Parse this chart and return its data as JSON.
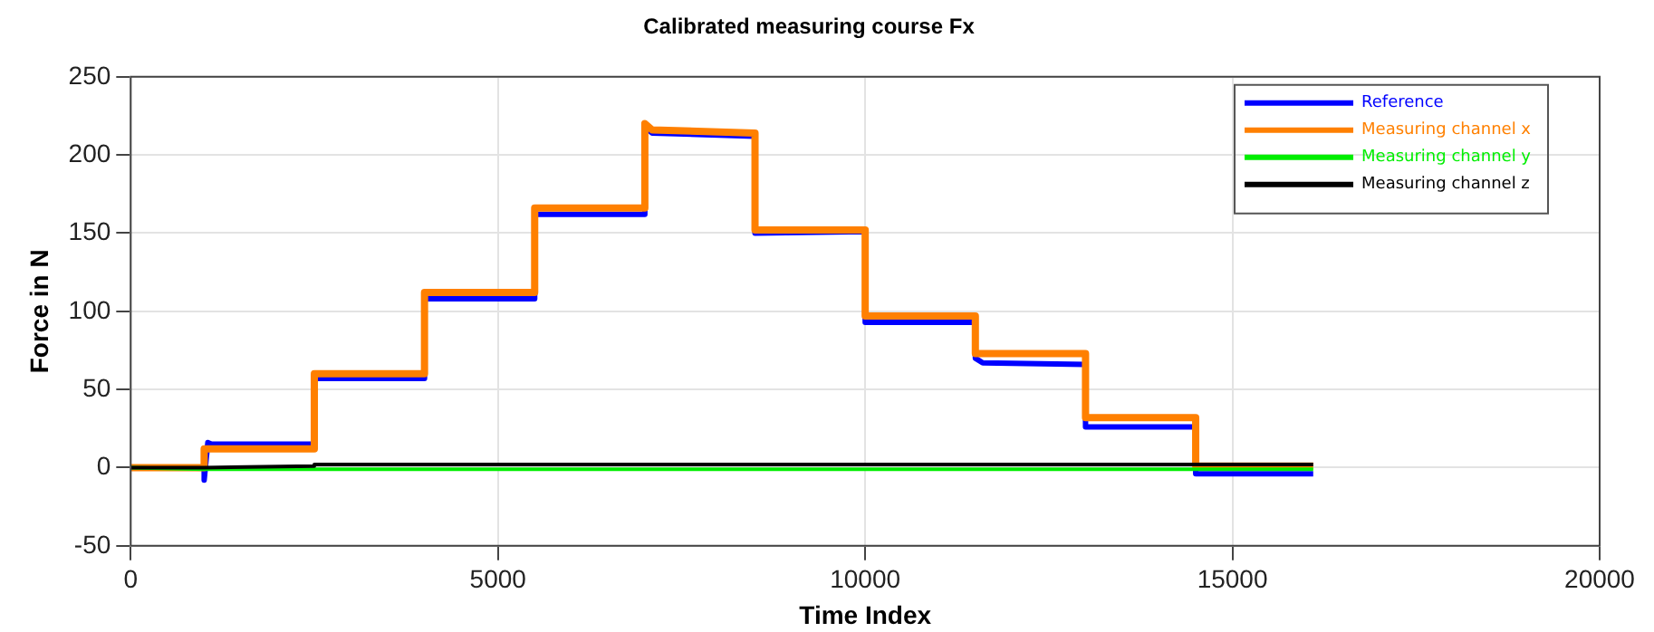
{
  "chart_data": {
    "type": "line",
    "title": "Calibrated measuring course Fx",
    "xlabel": "Time Index",
    "ylabel": "Force in N",
    "xlim": [
      0,
      20000
    ],
    "xticks": [
      0,
      5000,
      10000,
      15000,
      20000
    ],
    "ylim": [
      -50,
      250
    ],
    "yticks": [
      -50,
      0,
      50,
      100,
      150,
      200,
      250
    ],
    "grid": true,
    "legend": "top right",
    "marker": "none",
    "line_style": "solid",
    "series": [
      {
        "name": "Reference",
        "color": "#0000ff",
        "x": [
          0,
          1000,
          1000,
          1050,
          1100,
          2500,
          2500,
          4000,
          4000,
          5500,
          5500,
          7000,
          7000,
          7100,
          8500,
          8500,
          10000,
          10000,
          11500,
          11500,
          11600,
          13000,
          13000,
          14500,
          14500,
          16100
        ],
        "values": [
          0,
          0,
          -8,
          16,
          15,
          15,
          57,
          57,
          108,
          108,
          162,
          162,
          218,
          214,
          212,
          150,
          151,
          93,
          93,
          70,
          67,
          66,
          26,
          26,
          -4,
          -4
        ]
      },
      {
        "name": "Measuring channel x",
        "color": "#ff8000",
        "x": [
          0,
          1000,
          1000,
          2500,
          2500,
          4000,
          4000,
          5500,
          5500,
          7000,
          7000,
          7100,
          8500,
          8500,
          10000,
          10000,
          11500,
          11500,
          13000,
          13000,
          14500,
          14500,
          16100
        ],
        "values": [
          0,
          0,
          12,
          12,
          60,
          60,
          112,
          112,
          166,
          166,
          220,
          216,
          214,
          152,
          152,
          97,
          97,
          73,
          73,
          32,
          32,
          1,
          1
        ]
      },
      {
        "name": "Measuring channel y",
        "color": "#00ee00",
        "x": [
          0,
          1000,
          16100
        ],
        "values": [
          0,
          -1,
          -1
        ]
      },
      {
        "name": "Measuring channel z",
        "color": "#000000",
        "x": [
          0,
          1000,
          2500,
          2500,
          16100
        ],
        "values": [
          0,
          0,
          1,
          2,
          2
        ]
      }
    ]
  }
}
